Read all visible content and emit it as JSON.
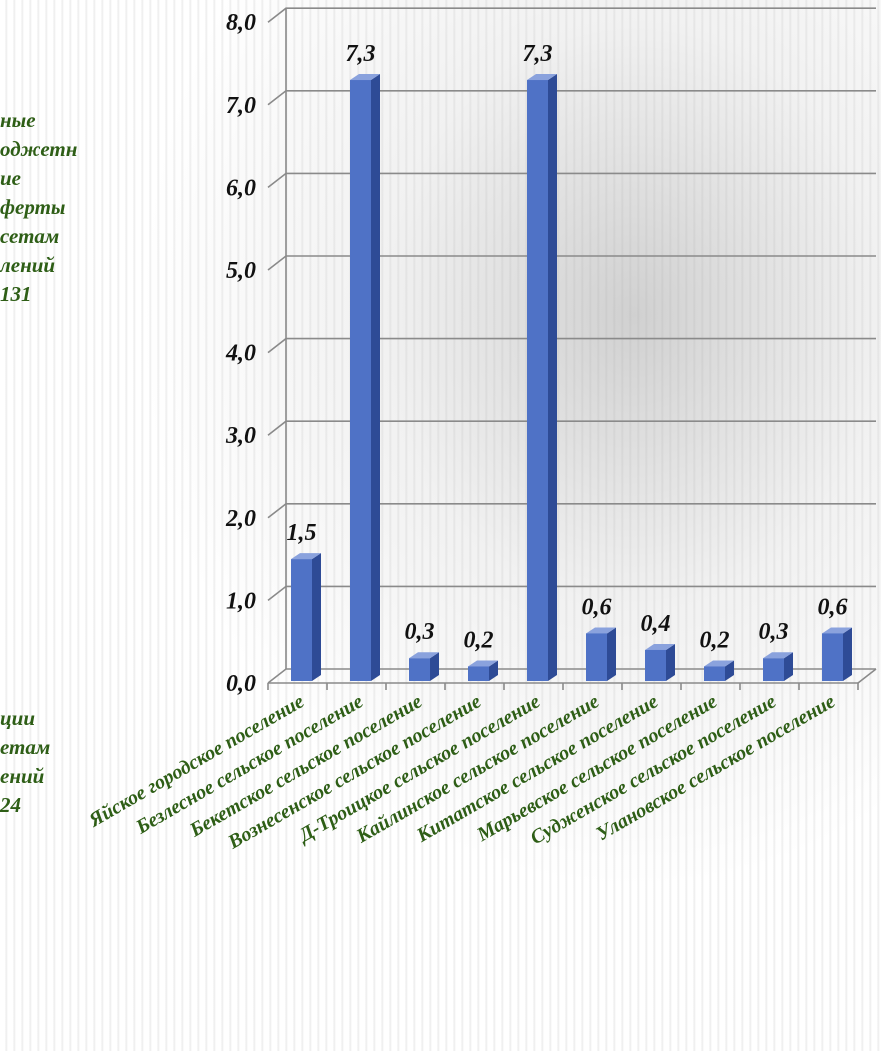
{
  "side_text": {
    "top_lines": [
      "ные",
      "оджетн",
      "ие",
      "ферты",
      "сетам",
      "лений",
      "131"
    ],
    "bottom_lines": [
      "ции",
      "етам",
      "ений",
      "24"
    ]
  },
  "colors": {
    "bar_front": "#4f72c6",
    "bar_side": "#2e4b96",
    "bar_top": "#8aa2dd",
    "grid": "#8a8a8a",
    "category_text": "#2e5e16",
    "value_text": "#111111"
  },
  "chart_data": {
    "type": "bar",
    "categories": [
      "Яйское городское поселение",
      "Безлесное сельское поселение",
      "Бекетское сельское поселение",
      "Вознесенское сельское поселение",
      "Д-Троицкое сельское поселение",
      "Кайлинское сельское поселение",
      "Китатское сельское поселение",
      "Марьевское сельское поселение",
      "Судженское сельское поселение",
      "Улановское сельское поселение"
    ],
    "values": [
      1.5,
      7.3,
      0.3,
      0.2,
      7.3,
      0.6,
      0.4,
      0.2,
      0.3,
      0.6
    ],
    "value_labels": [
      "1,5",
      "7,3",
      "0,3",
      "0,2",
      "7,3",
      "0,6",
      "0,4",
      "0,2",
      "0,3",
      "0,6"
    ],
    "y_ticks": [
      0,
      1,
      2,
      3,
      4,
      5,
      6,
      7,
      8
    ],
    "y_tick_labels": [
      "0,0",
      "1,0",
      "2,0",
      "3,0",
      "4,0",
      "5,0",
      "6,0",
      "7,0",
      "8,0"
    ],
    "ylim": [
      0,
      8
    ],
    "grid": true,
    "legend": "none",
    "style": "3d-columns"
  }
}
